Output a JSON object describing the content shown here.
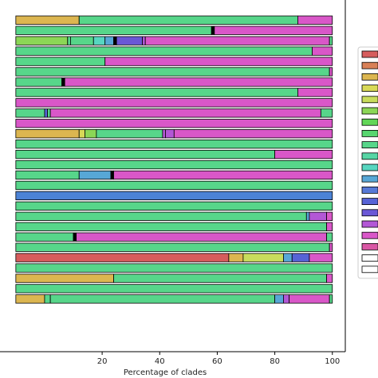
{
  "chart_data": {
    "type": "bar",
    "orientation": "horizontal",
    "stacked": true,
    "xlabel": "Percentage of clades",
    "xlim": [
      -15.5,
      104.5
    ],
    "xticks": [
      20,
      40,
      60,
      80,
      100
    ],
    "grid": false,
    "legend_placement": "right",
    "legend_entries": 18,
    "rows": [
      [
        {
          "start": -10,
          "end": 12,
          "color": "#dcb650"
        },
        {
          "start": 12,
          "end": 88,
          "color": "#57d68a"
        },
        {
          "start": 88,
          "end": 100,
          "color": "#d957c8"
        }
      ],
      [
        {
          "start": -10,
          "end": 58,
          "color": "#57d68a"
        },
        {
          "start": 58,
          "end": 59,
          "color": "#000000"
        },
        {
          "start": 59,
          "end": 100,
          "color": "#d957c8"
        }
      ],
      [
        {
          "start": -10,
          "end": 8,
          "color": "#8bd656"
        },
        {
          "start": 8,
          "end": 9,
          "color": "#57d68a"
        },
        {
          "start": 9,
          "end": 17,
          "color": "#57d68a"
        },
        {
          "start": 17,
          "end": 21,
          "color": "#57d6c0"
        },
        {
          "start": 21,
          "end": 24,
          "color": "#57a7d6"
        },
        {
          "start": 24,
          "end": 25,
          "color": "#000000"
        },
        {
          "start": 25,
          "end": 34,
          "color": "#6a57d6"
        },
        {
          "start": 34,
          "end": 35,
          "color": "#b357d6"
        },
        {
          "start": 35,
          "end": 99,
          "color": "#d957c8"
        },
        {
          "start": 99,
          "end": 100,
          "color": "#57d68a"
        }
      ],
      [
        {
          "start": -10,
          "end": 93,
          "color": "#57d68a"
        },
        {
          "start": 93,
          "end": 100,
          "color": "#d957c8"
        }
      ],
      [
        {
          "start": -10,
          "end": 21,
          "color": "#57d68a"
        },
        {
          "start": 21,
          "end": 100,
          "color": "#d957c8"
        }
      ],
      [
        {
          "start": -10,
          "end": 99,
          "color": "#57d68a"
        },
        {
          "start": 99,
          "end": 100,
          "color": "#d957c8"
        }
      ],
      [
        {
          "start": -10,
          "end": 6,
          "color": "#57d68a"
        },
        {
          "start": 6,
          "end": 7,
          "color": "#000000"
        },
        {
          "start": 7,
          "end": 100,
          "color": "#d957c8"
        }
      ],
      [
        {
          "start": -10,
          "end": 88,
          "color": "#57d68a"
        },
        {
          "start": 88,
          "end": 100,
          "color": "#d957c8"
        }
      ],
      [
        {
          "start": -10,
          "end": 100,
          "color": "#d957c8"
        }
      ],
      [
        {
          "start": -10,
          "end": 0,
          "color": "#57d68a"
        },
        {
          "start": 0,
          "end": 1,
          "color": "#5763d6"
        },
        {
          "start": 1,
          "end": 2,
          "color": "#57d68a"
        },
        {
          "start": 2,
          "end": 96,
          "color": "#d957c8"
        },
        {
          "start": 96,
          "end": 100,
          "color": "#57d68a"
        }
      ],
      [
        {
          "start": -10,
          "end": 100,
          "color": "#d957c8"
        }
      ],
      [
        {
          "start": -10,
          "end": 12,
          "color": "#dcb650"
        },
        {
          "start": 12,
          "end": 14,
          "color": "#d8d957"
        },
        {
          "start": 14,
          "end": 18,
          "color": "#8bd656"
        },
        {
          "start": 18,
          "end": 41,
          "color": "#57d68a"
        },
        {
          "start": 41,
          "end": 42,
          "color": "#b357d6"
        },
        {
          "start": 42,
          "end": 45,
          "color": "#b357d6"
        },
        {
          "start": 45,
          "end": 100,
          "color": "#d957c8"
        }
      ],
      [
        {
          "start": -10,
          "end": 100,
          "color": "#57d68a"
        }
      ],
      [
        {
          "start": -10,
          "end": 80,
          "color": "#57d68a"
        },
        {
          "start": 80,
          "end": 100,
          "color": "#d957c8"
        }
      ],
      [
        {
          "start": -10,
          "end": 100,
          "color": "#57d68a"
        }
      ],
      [
        {
          "start": -10,
          "end": 12,
          "color": "#57d68a"
        },
        {
          "start": 12,
          "end": 23,
          "color": "#57a7d6"
        },
        {
          "start": 23,
          "end": 24,
          "color": "#000000"
        },
        {
          "start": 24,
          "end": 100,
          "color": "#d957c8"
        }
      ],
      [
        {
          "start": -10,
          "end": 100,
          "color": "#57d68a"
        }
      ],
      [
        {
          "start": -10,
          "end": 100,
          "color": "#4c83d6"
        }
      ],
      [
        {
          "start": -10,
          "end": 100,
          "color": "#57d68a"
        }
      ],
      [
        {
          "start": -10,
          "end": 91,
          "color": "#57d68a"
        },
        {
          "start": 91,
          "end": 92,
          "color": "#57a7d6"
        },
        {
          "start": 92,
          "end": 98,
          "color": "#b357d6"
        },
        {
          "start": 98,
          "end": 100,
          "color": "#d957c8"
        }
      ],
      [
        {
          "start": -10,
          "end": 98,
          "color": "#57d68a"
        },
        {
          "start": 98,
          "end": 100,
          "color": "#d957c8"
        }
      ],
      [
        {
          "start": -10,
          "end": 10,
          "color": "#57d68a"
        },
        {
          "start": 10,
          "end": 11,
          "color": "#000000"
        },
        {
          "start": 11,
          "end": 98,
          "color": "#d957c8"
        },
        {
          "start": 98,
          "end": 100,
          "color": "#57d68a"
        }
      ],
      [
        {
          "start": -10,
          "end": 99,
          "color": "#57d68a"
        },
        {
          "start": 99,
          "end": 100,
          "color": "#d957c8"
        }
      ],
      [
        {
          "start": -10,
          "end": 64,
          "color": "#d65c5c"
        },
        {
          "start": 64,
          "end": 69,
          "color": "#dcb650"
        },
        {
          "start": 69,
          "end": 83,
          "color": "#c8dc5c"
        },
        {
          "start": 83,
          "end": 86,
          "color": "#57a7d6"
        },
        {
          "start": 86,
          "end": 92,
          "color": "#5763d6"
        },
        {
          "start": 92,
          "end": 100,
          "color": "#d957c8"
        }
      ],
      [
        {
          "start": -10,
          "end": 100,
          "color": "#57d68a"
        }
      ],
      [
        {
          "start": -10,
          "end": 24,
          "color": "#dcb650"
        },
        {
          "start": 24,
          "end": 98,
          "color": "#57d68a"
        },
        {
          "start": 98,
          "end": 100,
          "color": "#d957c8"
        }
      ],
      [
        {
          "start": -10,
          "end": 100,
          "color": "#57d68a"
        }
      ],
      [
        {
          "start": -10,
          "end": 0,
          "color": "#dcb650"
        },
        {
          "start": 0,
          "end": 2,
          "color": "#57d68a"
        },
        {
          "start": 2,
          "end": 80,
          "color": "#57d68a"
        },
        {
          "start": 80,
          "end": 83,
          "color": "#57a7d6"
        },
        {
          "start": 83,
          "end": 85,
          "color": "#b357d6"
        },
        {
          "start": 85,
          "end": 99,
          "color": "#d957c8"
        },
        {
          "start": 99,
          "end": 100,
          "color": "#57d68a"
        }
      ]
    ],
    "legend_colors": [
      "#d65c5c",
      "#d98057",
      "#dcb650",
      "#d8d957",
      "#c8dc5c",
      "#8bd656",
      "#62d657",
      "#57d66f",
      "#57d68a",
      "#57d6a5",
      "#57d6c0",
      "#57a7d6",
      "#5779d6",
      "#5763d6",
      "#6a57d6",
      "#b357d6",
      "#d957c8",
      "#d957a4",
      "#ffffff",
      "#ffffff"
    ]
  }
}
